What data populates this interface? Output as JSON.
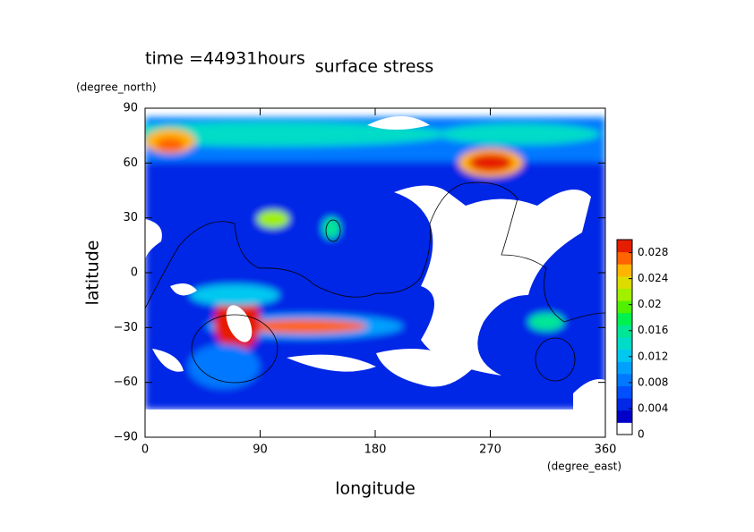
{
  "chart_data": {
    "type": "contour",
    "time_label": "time =44931hours",
    "title": "surface stress",
    "x_label": "longitude",
    "x_unit": "(degree_east)",
    "y_label": "latitude",
    "y_unit": "(degree_north)",
    "xlim": [
      0,
      360
    ],
    "xticks": [
      0,
      90,
      180,
      270,
      360
    ],
    "ylim": [
      -90,
      90
    ],
    "yticks": [
      -90,
      -60,
      -30,
      0,
      30,
      60,
      90
    ],
    "yticklabels": [
      {
        "value": -90,
        "label": "−90"
      },
      {
        "value": -60,
        "label": "−60"
      },
      {
        "value": -30,
        "label": "−30"
      }
    ],
    "colorbar": {
      "lim": [
        0,
        0.03
      ],
      "ticks": [
        0,
        0.004,
        0.008,
        0.012,
        0.016,
        0.02,
        0.024,
        0.028
      ],
      "colors": [
        "#ffffff",
        "#0000c8",
        "#0028e6",
        "#0050ff",
        "#0078ff",
        "#00a0ff",
        "#00c8f0",
        "#00dcc8",
        "#00e696",
        "#00f050",
        "#50f000",
        "#a0f000",
        "#dcdc00",
        "#ffb400",
        "#ff6400",
        "#e61e00"
      ]
    }
  }
}
